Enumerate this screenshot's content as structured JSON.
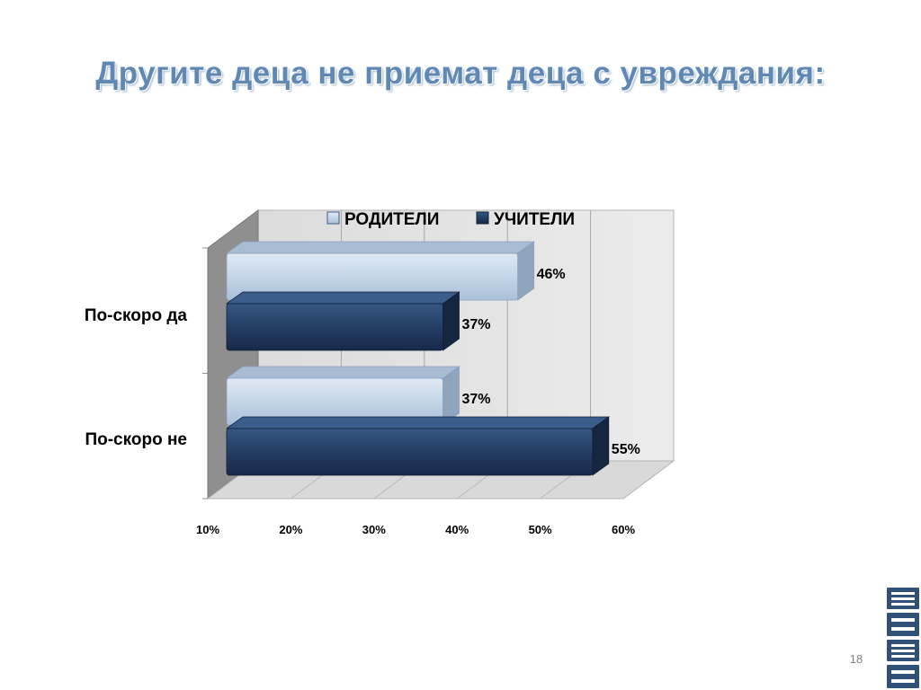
{
  "slide": {
    "title": "Другите деца не приемат деца с увреждания:",
    "page_number": "18"
  },
  "colors": {
    "parents": "#c4d6e8",
    "teachers": "#243e64",
    "title": "#5f89b4"
  },
  "chart_data": {
    "type": "bar",
    "orientation": "horizontal",
    "three_d": true,
    "title": "",
    "xlabel": "",
    "ylabel": "",
    "categories": [
      "По-скоро да",
      "По-скоро не"
    ],
    "series": [
      {
        "name": "РОДИТЕЛИ",
        "values": [
          46,
          37
        ],
        "labels": [
          "46%",
          "37%"
        ]
      },
      {
        "name": "УЧИТЕЛИ",
        "values": [
          37,
          55
        ],
        "labels": [
          "37%",
          "55%"
        ]
      }
    ],
    "xlim": [
      10,
      60
    ],
    "ticks": [
      10,
      20,
      30,
      40,
      50,
      60
    ],
    "tick_labels": [
      "10%",
      "20%",
      "30%",
      "40%",
      "50%",
      "60%"
    ],
    "grid": true,
    "legend_position": "top"
  }
}
